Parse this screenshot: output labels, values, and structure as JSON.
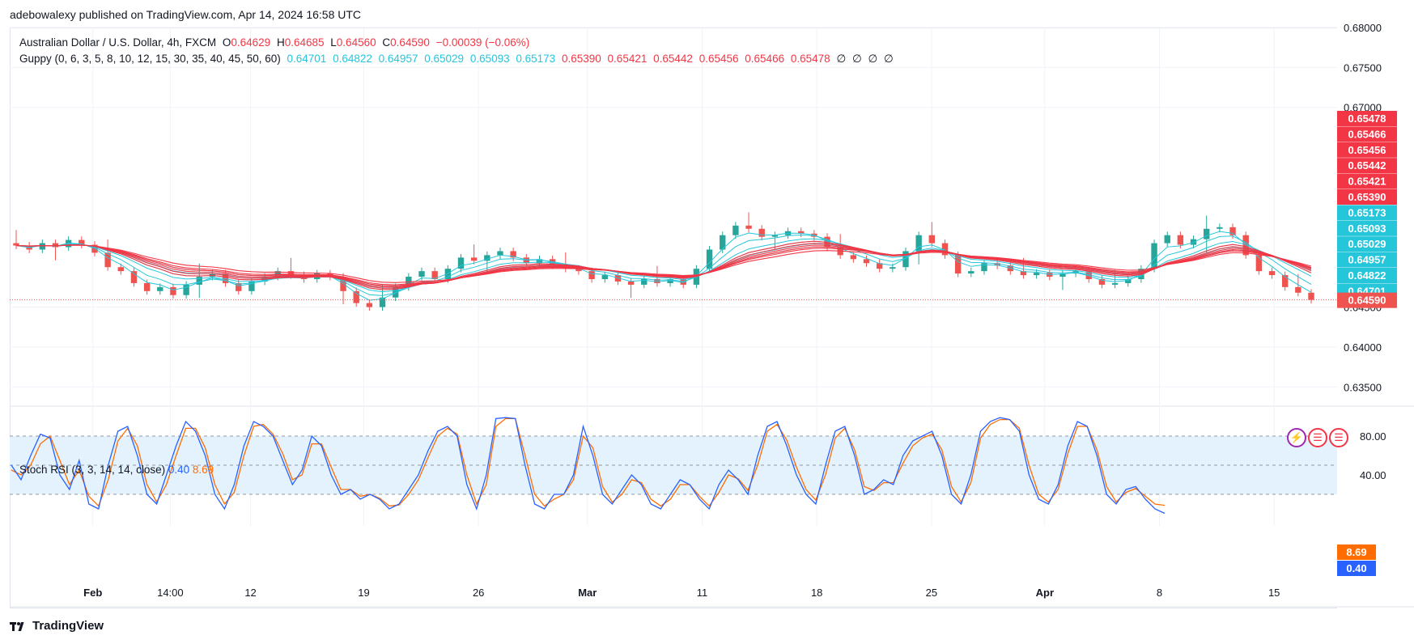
{
  "header": {
    "published": "adebowalexy published on TradingView.com, Apr 14, 2024 16:58 UTC"
  },
  "legend": {
    "symbol": "Australian Dollar / U.S. Dollar, 4h, FXCM",
    "o_label": "O",
    "o_value": "0.64629",
    "h_label": "H",
    "h_value": "0.64685",
    "l_label": "L",
    "l_value": "0.64560",
    "c_label": "C",
    "c_value": "0.64590",
    "change": "−0.00039 (−0.06%)",
    "guppy_label": "Guppy (0, 6, 3, 5, 8, 10, 12, 15, 30, 35, 40, 45, 50, 60)",
    "guppy_fast": [
      "0.64701",
      "0.64822",
      "0.64957",
      "0.65029",
      "0.65093",
      "0.65173"
    ],
    "guppy_slow": [
      "0.65390",
      "0.65421",
      "0.65442",
      "0.65456",
      "0.65466",
      "0.65478"
    ],
    "guppy_empty": [
      "∅",
      "∅",
      "∅",
      "∅"
    ]
  },
  "stoch_legend": {
    "label": "Stoch RSI (3, 3, 14, 14, close)",
    "k": "0.40",
    "d": "8.69"
  },
  "colors": {
    "up": "#26a69a",
    "down": "#ef5350",
    "fast_ema": "#26c6da",
    "slow_ema": "#f23645",
    "k_line": "#2962ff",
    "d_line": "#ff6d00",
    "band_fill": "#e3f2fd"
  },
  "footer": {
    "brand": "TradingView",
    "icon": "tradingview-logo-icon"
  },
  "badges": [
    "lightning-icon",
    "us-flag-icon",
    "us-flag-icon"
  ],
  "chart_data": [
    {
      "type": "candlestick",
      "title": "Australian Dollar / U.S. Dollar, 4h, FXCM",
      "price_axis_ticks": [
        "0.68000",
        "0.67500",
        "0.67000",
        "0.64500",
        "0.64000",
        "0.63500"
      ],
      "price_range": [
        0.6328,
        0.68
      ],
      "price_labels": [
        {
          "value": 0.65478,
          "text": "0.65478",
          "color": "#f23645"
        },
        {
          "value": 0.65466,
          "text": "0.65466",
          "color": "#f23645"
        },
        {
          "value": 0.65456,
          "text": "0.65456",
          "color": "#f23645"
        },
        {
          "value": 0.65442,
          "text": "0.65442",
          "color": "#f23645"
        },
        {
          "value": 0.65421,
          "text": "0.65421",
          "color": "#f23645"
        },
        {
          "value": 0.6539,
          "text": "0.65390",
          "color": "#f23645"
        },
        {
          "value": 0.65173,
          "text": "0.65173",
          "color": "#26c6da"
        },
        {
          "value": 0.65093,
          "text": "0.65093",
          "color": "#26c6da"
        },
        {
          "value": 0.65029,
          "text": "0.65029",
          "color": "#26c6da"
        },
        {
          "value": 0.64957,
          "text": "0.64957",
          "color": "#26c6da"
        },
        {
          "value": 0.64822,
          "text": "0.64822",
          "color": "#26c6da"
        },
        {
          "value": 0.64701,
          "text": "0.64701",
          "color": "#26c6da"
        },
        {
          "value": 0.6459,
          "text": "0.64590",
          "color": "#ef5350"
        }
      ],
      "last_close": 0.6459,
      "time_axis_ticks": [
        "Feb",
        "14:00",
        "12",
        "19",
        "26",
        "Mar",
        "11",
        "18",
        "25",
        "Apr",
        "8",
        "15"
      ],
      "close_series_approx": [
        0.6527,
        0.6522,
        0.653,
        0.6525,
        0.6534,
        0.6528,
        0.6518,
        0.65,
        0.6495,
        0.648,
        0.647,
        0.6475,
        0.6465,
        0.6478,
        0.6488,
        0.6492,
        0.648,
        0.647,
        0.6482,
        0.6488,
        0.6495,
        0.649,
        0.6485,
        0.6492,
        0.6488,
        0.647,
        0.6455,
        0.645,
        0.6462,
        0.6475,
        0.6488,
        0.6495,
        0.6485,
        0.6498,
        0.6512,
        0.6508,
        0.6515,
        0.652,
        0.6512,
        0.6505,
        0.651,
        0.6502,
        0.6498,
        0.6495,
        0.6485,
        0.649,
        0.6482,
        0.6478,
        0.6485,
        0.648,
        0.6485,
        0.6478,
        0.6498,
        0.6522,
        0.654,
        0.6552,
        0.6548,
        0.6538,
        0.654,
        0.6545,
        0.6542,
        0.6538,
        0.6525,
        0.6515,
        0.651,
        0.6505,
        0.6498,
        0.65,
        0.652,
        0.654,
        0.653,
        0.6515,
        0.6492,
        0.6495,
        0.6505,
        0.6502,
        0.6495,
        0.649,
        0.6493,
        0.6488,
        0.6492,
        0.6495,
        0.6485,
        0.6478,
        0.648,
        0.6485,
        0.6498,
        0.653,
        0.654,
        0.6528,
        0.6535,
        0.6548,
        0.655,
        0.654,
        0.6515,
        0.6495,
        0.649,
        0.6475,
        0.6468,
        0.6459
      ],
      "guppy_note": "6 fast EMAs (cyan) and 6 slow EMAs (red)"
    },
    {
      "type": "line",
      "title": "Stoch RSI (3, 3, 14, 14, close)",
      "series": [
        {
          "name": "K",
          "last": 0.4
        },
        {
          "name": "D",
          "last": 8.69
        }
      ],
      "levels": [
        80,
        50,
        20
      ],
      "axis_ticks": [
        "80.00",
        "40.00"
      ],
      "y_range": [
        0,
        100
      ],
      "k_series_approx": [
        50,
        35,
        60,
        82,
        78,
        40,
        25,
        55,
        10,
        5,
        50,
        85,
        90,
        60,
        20,
        10,
        40,
        70,
        95,
        85,
        60,
        20,
        5,
        30,
        70,
        95,
        90,
        80,
        55,
        30,
        45,
        80,
        70,
        40,
        20,
        25,
        15,
        20,
        15,
        5,
        10,
        25,
        40,
        65,
        85,
        90,
        80,
        30,
        5,
        40,
        98,
        99,
        98,
        50,
        10,
        5,
        20,
        20,
        40,
        90,
        60,
        20,
        10,
        25,
        40,
        30,
        10,
        5,
        20,
        35,
        30,
        15,
        5,
        30,
        45,
        35,
        20,
        60,
        90,
        95,
        70,
        40,
        20,
        10,
        50,
        85,
        90,
        60,
        20,
        25,
        35,
        30,
        60,
        75,
        80,
        85,
        60,
        20,
        10,
        40,
        85,
        95,
        99,
        97,
        85,
        40,
        15,
        10,
        30,
        70,
        95,
        90,
        60,
        20,
        10,
        25,
        28,
        15,
        5,
        0.4
      ],
      "d_series_approx": [
        45,
        40,
        50,
        72,
        80,
        55,
        30,
        45,
        18,
        8,
        35,
        75,
        88,
        70,
        30,
        12,
        30,
        60,
        88,
        88,
        68,
        30,
        10,
        22,
        60,
        90,
        92,
        82,
        62,
        35,
        40,
        72,
        72,
        48,
        25,
        25,
        18,
        20,
        16,
        8,
        9,
        20,
        35,
        58,
        80,
        88,
        82,
        40,
        10,
        30,
        90,
        98,
        98,
        60,
        20,
        8,
        15,
        20,
        35,
        80,
        68,
        28,
        12,
        20,
        35,
        32,
        15,
        8,
        15,
        30,
        30,
        18,
        8,
        22,
        40,
        36,
        24,
        50,
        85,
        92,
        76,
        48,
        25,
        14,
        40,
        78,
        88,
        66,
        28,
        24,
        32,
        32,
        52,
        70,
        78,
        82,
        66,
        28,
        12,
        32,
        78,
        92,
        97,
        97,
        88,
        50,
        20,
        12,
        25,
        62,
        90,
        90,
        66,
        28,
        12,
        22,
        26,
        18,
        10,
        8.69
      ]
    }
  ]
}
